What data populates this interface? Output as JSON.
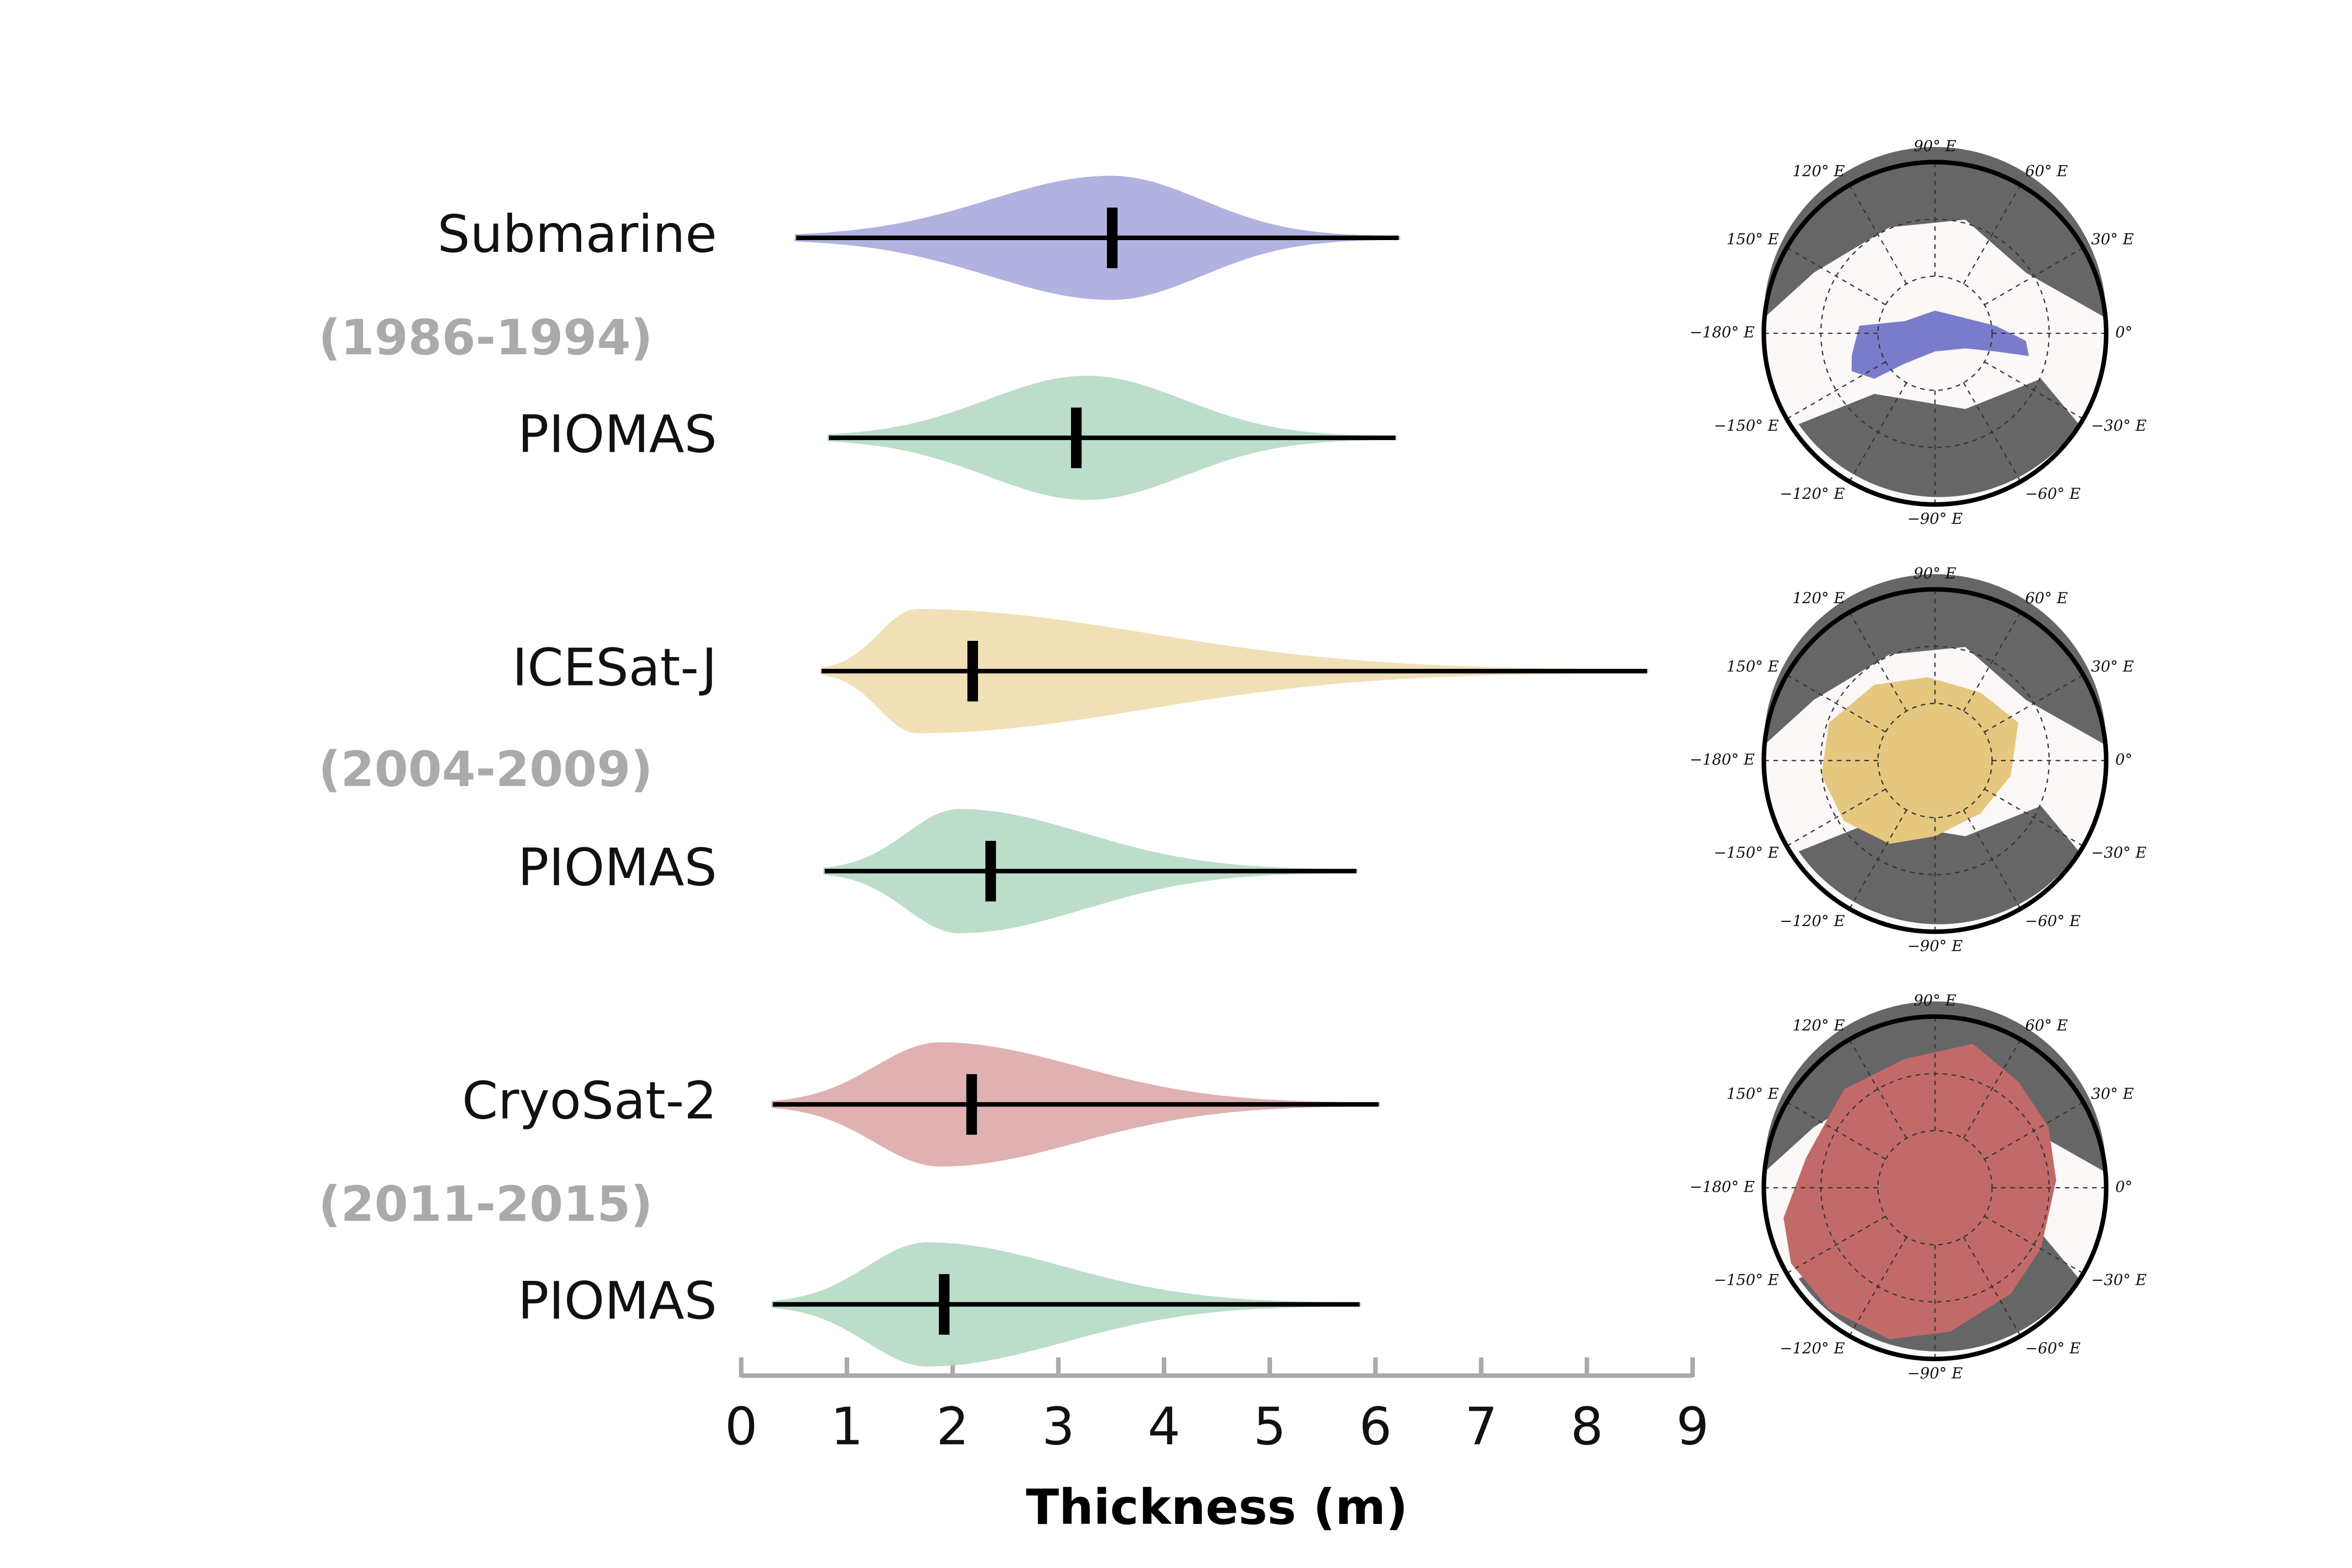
{
  "chart_data": {
    "type": "violin",
    "xlabel": "Thickness (m)",
    "xlim": [
      0,
      9
    ],
    "xticks": [
      0,
      1,
      2,
      3,
      4,
      5,
      6,
      7,
      8,
      9
    ],
    "groups": [
      "(1986-1994)",
      "(2004-2009)",
      "(2011-2015)"
    ],
    "series": [
      {
        "name": "Submarine",
        "color": "#aeaedf",
        "min": 0.52,
        "mode": 3.5,
        "median": 3.51,
        "max": 6.22
      },
      {
        "name": "PIOMAS",
        "color": "#b9dcc8",
        "min": 0.83,
        "mode": 3.27,
        "median": 3.17,
        "max": 6.19
      },
      {
        "name": "ICESat-J",
        "color": "#f1deb3",
        "min": 0.76,
        "mode": 1.66,
        "median": 2.19,
        "max": 8.57
      },
      {
        "name": "PIOMAS",
        "color": "#b9dcc8",
        "min": 0.79,
        "mode": 2.06,
        "median": 2.36,
        "max": 5.82
      },
      {
        "name": "CryoSat-2",
        "color": "#deadad",
        "min": 0.3,
        "mode": 1.88,
        "median": 2.18,
        "max": 6.03
      },
      {
        "name": "PIOMAS",
        "color": "#b9dcc8",
        "min": 0.3,
        "mode": 1.76,
        "median": 1.92,
        "max": 5.85
      }
    ]
  },
  "maps": {
    "colors": [
      "#7b7bcc",
      "#e6c77f",
      "#c26a6a"
    ],
    "labels": [
      "90° E",
      "60° E",
      "30° E",
      "0°",
      "−30° E",
      "−60° E",
      "−90° E",
      "−120° E",
      "−150° E",
      "−180° E",
      "150° E",
      "120° E"
    ]
  }
}
